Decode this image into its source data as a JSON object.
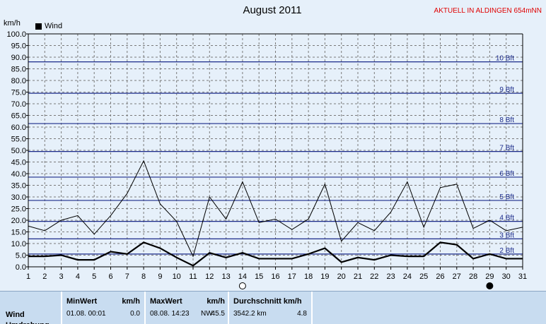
{
  "header": {
    "title": "August 2011",
    "station": "AKTUELL IN ALDINGEN 654mNN",
    "unit": "km/h"
  },
  "colors": {
    "beaufort_line": "#1a2a8a",
    "grid": "#7a7a7a",
    "series": "#000000",
    "station_text": "#e00000"
  },
  "chart_data": {
    "type": "line",
    "xlabel": "",
    "ylabel": "km/h",
    "xlim": [
      1,
      31
    ],
    "ylim": [
      0,
      100
    ],
    "grid": true,
    "legend": "top-left",
    "x_ticks": [
      1,
      2,
      3,
      4,
      5,
      6,
      7,
      8,
      9,
      10,
      11,
      12,
      13,
      14,
      15,
      16,
      17,
      18,
      19,
      20,
      21,
      22,
      23,
      24,
      25,
      26,
      27,
      28,
      29,
      30,
      31
    ],
    "y_ticks": [
      "0.0",
      "5.0",
      "10.0",
      "15.0",
      "20.0",
      "25.0",
      "30.0",
      "35.0",
      "40.0",
      "45.0",
      "50.0",
      "55.0",
      "60.0",
      "65.0",
      "70.0",
      "75.0",
      "80.0",
      "85.0",
      "90.0",
      "95.0",
      "100.0"
    ],
    "series": [
      {
        "name": "Wind",
        "role": "peak",
        "x": [
          1,
          2,
          3,
          4,
          5,
          6,
          7,
          8,
          9,
          10,
          11,
          12,
          13,
          14,
          15,
          16,
          17,
          18,
          19,
          20,
          21,
          22,
          23,
          24,
          25,
          26,
          27,
          28,
          29,
          30,
          31
        ],
        "values": [
          17.5,
          15.5,
          20,
          22,
          14,
          22,
          31.5,
          45.5,
          27,
          19.5,
          4.5,
          30,
          20.5,
          36.5,
          19,
          20.5,
          16,
          20.5,
          35.5,
          11,
          19,
          15.5,
          23.5,
          36.5,
          17,
          34,
          35.5,
          16.5,
          20,
          15.5,
          17
        ]
      },
      {
        "name": "Wind",
        "role": "mean",
        "x": [
          1,
          2,
          3,
          4,
          5,
          6,
          7,
          8,
          9,
          10,
          11,
          12,
          13,
          14,
          15,
          16,
          17,
          18,
          19,
          20,
          21,
          22,
          23,
          24,
          25,
          26,
          27,
          28,
          29,
          30,
          31
        ],
        "values": [
          4.5,
          4.5,
          5,
          3,
          3,
          6.5,
          5.5,
          10.5,
          8,
          4,
          0.5,
          6,
          4,
          6,
          3.5,
          3.5,
          3.5,
          5.5,
          8,
          2,
          4,
          3,
          5,
          4.5,
          4.5,
          10.5,
          9.5,
          3.5,
          5.5,
          3.5,
          3.5
        ]
      }
    ],
    "beaufort": [
      {
        "label": "2 Bft",
        "value": 5.5
      },
      {
        "label": "3 Bft",
        "value": 12
      },
      {
        "label": "4 Bft",
        "value": 19.5
      },
      {
        "label": "5 Bft",
        "value": 28.5
      },
      {
        "label": "6 Bft",
        "value": 38.5
      },
      {
        "label": "7 Bft",
        "value": 49.5
      },
      {
        "label": "8 Bft",
        "value": 61.5
      },
      {
        "label": "9 Bft",
        "value": 74.5
      },
      {
        "label": "10 Bft",
        "value": 88
      }
    ],
    "moon_markers": [
      {
        "day": 14,
        "phase": "full-moon"
      },
      {
        "day": 29,
        "phase": "new-moon"
      }
    ]
  },
  "stats": {
    "row_label": "Wind",
    "row_label_2": "Umdrehung",
    "min": {
      "header": "MinWert",
      "unit": "km/h",
      "date": "01.08.  00:01",
      "value": "0.0"
    },
    "max": {
      "header": "MaxWert",
      "unit": "km/h",
      "date": "08.08.  14:23",
      "dir": "NW",
      "value": "45.5"
    },
    "avg": {
      "header": "Durchschnitt km/h",
      "distance": "3542.2 km",
      "value": "4.8"
    }
  }
}
